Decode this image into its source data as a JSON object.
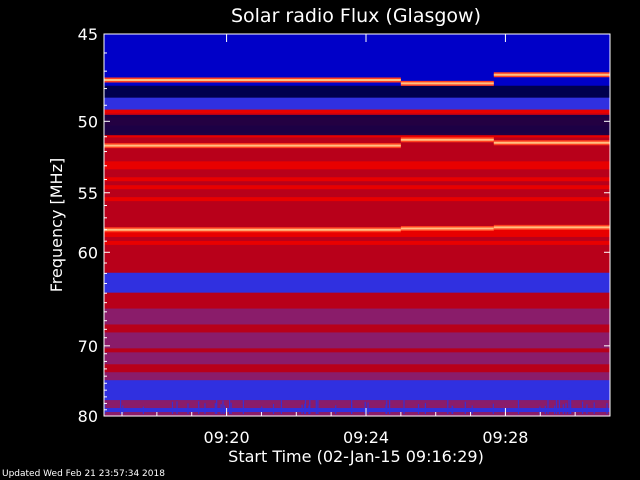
{
  "chart_data": {
    "type": "heatmap",
    "title": "Solar radio Flux (Glasgow)",
    "xlabel": "Start Time (02-Jan-15 09:16:29)",
    "ylabel": "Frequency [MHz]",
    "x_start_time": "09:16:29",
    "x_end_time": "09:31:00",
    "x_ticks": [
      "09:20",
      "09:24",
      "09:28"
    ],
    "y_ticks": [
      "45",
      "50",
      "55",
      "60",
      "70",
      "80"
    ],
    "y_range_mhz": [
      45,
      80
    ],
    "y_scale": "reciprocal",
    "grid": false,
    "colormap": [
      "#00004d",
      "#0000c8",
      "#3030e0",
      "#8a1c6a",
      "#b8001a",
      "#e80000",
      "#ff4020",
      "#ffc080",
      "#ffffff"
    ],
    "bright_lines_mhz": [
      {
        "freq": 47.5,
        "segments": [
          [
            "09:16:29",
            "09:25:00"
          ],
          [
            "09:25:00",
            "09:27:40"
          ],
          [
            "09:27:40",
            "09:31:00"
          ]
        ],
        "freq_shift": [
          0,
          0.2,
          -0.3
        ]
      },
      {
        "freq": 51.6,
        "segments": [
          [
            "09:16:29",
            "09:25:00"
          ],
          [
            "09:25:00",
            "09:27:40"
          ],
          [
            "09:27:40",
            "09:31:00"
          ]
        ],
        "freq_shift": [
          0,
          -0.4,
          -0.2
        ]
      },
      {
        "freq": 58.0,
        "segments": [
          [
            "09:16:29",
            "09:25:00"
          ],
          [
            "09:25:00",
            "09:27:40"
          ],
          [
            "09:27:40",
            "09:31:00"
          ]
        ],
        "freq_shift": [
          0,
          -0.1,
          -0.2
        ]
      }
    ]
  },
  "footer": {
    "updated": "Updated Wed Feb 21 23:57:34 2018"
  }
}
